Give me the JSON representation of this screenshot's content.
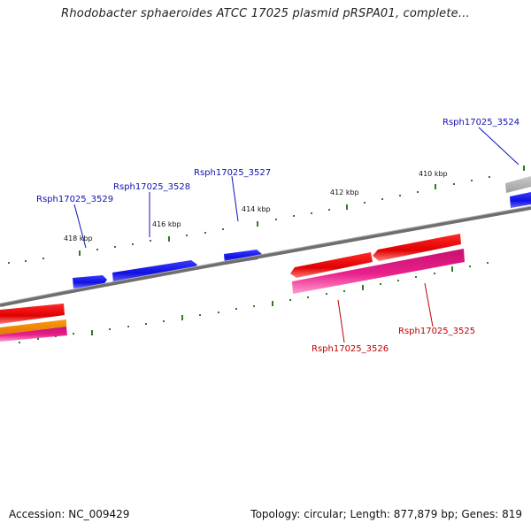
{
  "title": "Rhodobacter sphaeroides ATCC 17025 plasmid pRSPA01, complete...",
  "footer": {
    "accession": "Accession: NC_009429",
    "summary": "Topology: circular; Length: 877,879 bp; Genes: 819"
  },
  "colors": {
    "backbone": "#8a8a8a",
    "tick": "#2e7d1e",
    "forward_gene": "#1010e0",
    "reverse_gene": "#e00000",
    "reverse_cds": "#e8208a",
    "orange_feature": "#f08a00",
    "grey_feature": "#b8b8b8",
    "forward_label": "#1010b0",
    "reverse_label": "#c00000"
  },
  "ticks": [
    {
      "label": "418 kbp"
    },
    {
      "label": "416 kbp"
    },
    {
      "label": "414 kbp"
    },
    {
      "label": "412 kbp"
    },
    {
      "label": "410 kbp"
    }
  ],
  "genes": [
    {
      "name": "Rsph17025_3529",
      "strand": "forward"
    },
    {
      "name": "Rsph17025_3528",
      "strand": "forward"
    },
    {
      "name": "Rsph17025_3527",
      "strand": "forward"
    },
    {
      "name": "Rsph17025_3524",
      "strand": "forward"
    },
    {
      "name": "Rsph17025_3526",
      "strand": "reverse"
    },
    {
      "name": "Rsph17025_3525",
      "strand": "reverse"
    }
  ]
}
